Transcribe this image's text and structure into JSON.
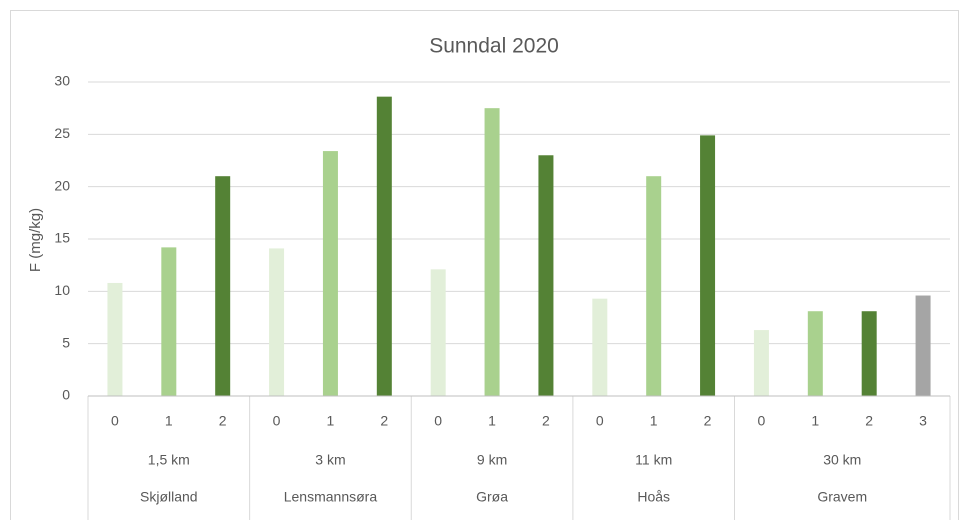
{
  "chart_data": {
    "type": "bar",
    "title": "Sunndal 2020",
    "y_label": "F (mg/kg)",
    "ylim": [
      0,
      30
    ],
    "yticks": [
      0,
      5,
      10,
      15,
      20,
      25,
      30
    ],
    "grid": true,
    "groups": [
      {
        "site": "Skjølland",
        "distance": "1,5 km",
        "categories": [
          "0",
          "1",
          "2"
        ],
        "values": [
          10.8,
          14.2,
          21.0
        ],
        "colors": [
          "#e2efd9",
          "#a9d18e",
          "#548235"
        ]
      },
      {
        "site": "Lensmannsøra",
        "distance": "3 km",
        "categories": [
          "0",
          "1",
          "2"
        ],
        "values": [
          14.1,
          23.4,
          28.6
        ],
        "colors": [
          "#e2efd9",
          "#a9d18e",
          "#548235"
        ]
      },
      {
        "site": "Grøa",
        "distance": "9 km",
        "categories": [
          "0",
          "1",
          "2"
        ],
        "values": [
          12.1,
          27.5,
          23.0
        ],
        "colors": [
          "#e2efd9",
          "#a9d18e",
          "#548235"
        ]
      },
      {
        "site": "Hoås",
        "distance": "11 km",
        "categories": [
          "0",
          "1",
          "2"
        ],
        "values": [
          9.3,
          21.0,
          24.9
        ],
        "colors": [
          "#e2efd9",
          "#a9d18e",
          "#548235"
        ]
      },
      {
        "site": "Gravem",
        "distance": "30 km",
        "categories": [
          "0",
          "1",
          "2",
          "3"
        ],
        "values": [
          6.3,
          8.1,
          8.1,
          9.6
        ],
        "colors": [
          "#e2efd9",
          "#a9d18e",
          "#548235",
          "#a5a5a5"
        ]
      }
    ]
  }
}
